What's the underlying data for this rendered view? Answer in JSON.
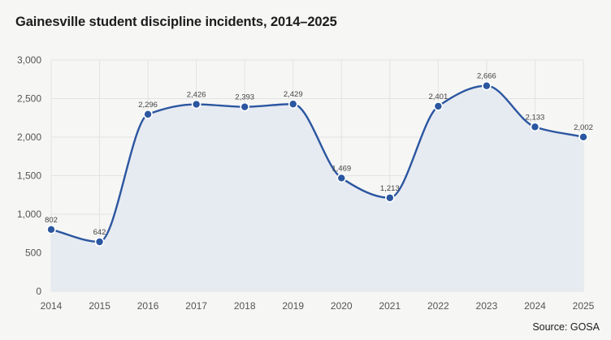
{
  "chart_data": {
    "type": "area",
    "title": "Gainesville student discipline incidents, 2014–2025",
    "source": "Source: GOSA",
    "x": [
      "2014",
      "2015",
      "2016",
      "2017",
      "2018",
      "2019",
      "2020",
      "2021",
      "2022",
      "2023",
      "2024",
      "2025"
    ],
    "values": [
      802,
      642,
      2296,
      2426,
      2393,
      2429,
      1469,
      1213,
      2401,
      2666,
      2133,
      2002
    ],
    "data_labels": [
      "802",
      "642",
      "2,296",
      "2,426",
      "2,393",
      "2,429",
      "1,469",
      "1,213",
      "2,401",
      "2,666",
      "2,133",
      "2,002"
    ],
    "y_ticks": [
      0,
      500,
      1000,
      1500,
      2000,
      2500,
      3000
    ],
    "y_tick_labels": [
      "0",
      "500",
      "1,000",
      "1,500",
      "2,000",
      "2,500",
      "3,000"
    ],
    "ylim": [
      0,
      3000
    ],
    "xlabel": "",
    "ylabel": "",
    "grid": true,
    "legend": "none",
    "colors": {
      "line": "#2b56a0",
      "fill": "#e6eaf1",
      "grid": "#e3e3e3"
    }
  }
}
